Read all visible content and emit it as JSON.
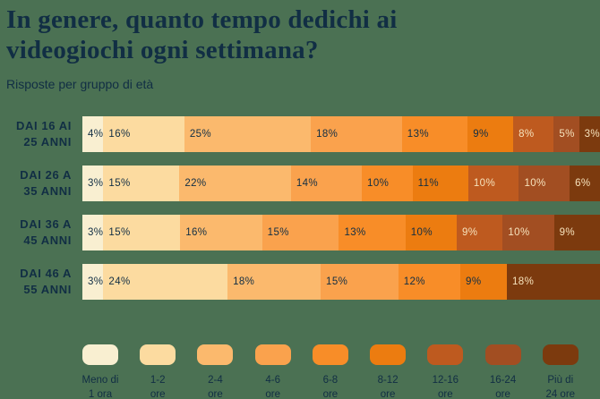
{
  "header": {
    "title_line1": "In genere, quanto tempo dedichi ai",
    "title_line2": "videogiochi ogni settimana?",
    "subtitle": "Risposte per gruppo di età"
  },
  "colors": {
    "background": "#4B7153",
    "text_dark": "#112E44",
    "text_light": "#F6E2BC",
    "palette": [
      "#F9EFD1",
      "#FCDBA0",
      "#FBB96D",
      "#FAA24D",
      "#F88D28",
      "#EC7C10",
      "#BE5A1F",
      "#A24E22",
      "#7C3A0E"
    ]
  },
  "chart_data": {
    "type": "bar",
    "stacked": true,
    "orientation": "horizontal",
    "value_unit": "%",
    "legend_position": "bottom",
    "title": "In genere, quanto tempo dedichi ai videogiochi ogni settimana?",
    "subtitle": "Risposte per gruppo di età",
    "rows": [
      {
        "label_lines": [
          "DAI 16 AI",
          "25 ANNI"
        ],
        "values": [
          4,
          16,
          25,
          18,
          13,
          9,
          8,
          5,
          3
        ],
        "palette_indices": [
          0,
          1,
          2,
          3,
          4,
          5,
          6,
          7,
          8
        ]
      },
      {
        "label_lines": [
          "DAI 26 A",
          "35 ANNI"
        ],
        "values": [
          3,
          15,
          22,
          14,
          10,
          11,
          10,
          10,
          6
        ],
        "palette_indices": [
          0,
          1,
          2,
          3,
          4,
          5,
          6,
          7,
          8
        ]
      },
      {
        "label_lines": [
          "DAI 36 A",
          "45 ANNI"
        ],
        "values": [
          3,
          15,
          16,
          15,
          13,
          10,
          9,
          10,
          9
        ],
        "palette_indices": [
          0,
          1,
          2,
          3,
          4,
          5,
          6,
          7,
          8
        ]
      },
      {
        "label_lines": [
          "DAI 46 A",
          "55 ANNI"
        ],
        "values": [
          3,
          24,
          18,
          15,
          12,
          9,
          18
        ],
        "palette_indices": [
          0,
          1,
          2,
          3,
          4,
          5,
          8
        ]
      }
    ],
    "legend": [
      {
        "lines": [
          "Meno di",
          "1 ora"
        ]
      },
      {
        "lines": [
          "1-2",
          "ore"
        ]
      },
      {
        "lines": [
          "2-4",
          "ore"
        ]
      },
      {
        "lines": [
          "4-6",
          "ore"
        ]
      },
      {
        "lines": [
          "6-8",
          "ore"
        ]
      },
      {
        "lines": [
          "8-12",
          "ore"
        ]
      },
      {
        "lines": [
          "12-16",
          "ore"
        ]
      },
      {
        "lines": [
          "16-24",
          "ore"
        ]
      },
      {
        "lines": [
          "Più di",
          "24 ore"
        ]
      }
    ]
  }
}
